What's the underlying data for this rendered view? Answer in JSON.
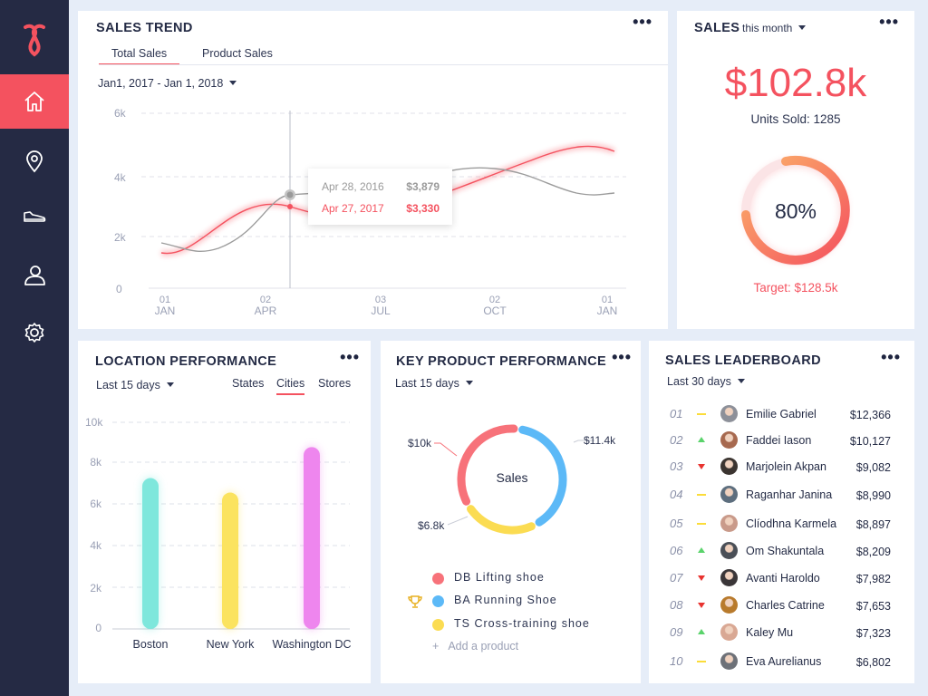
{
  "sales_trend": {
    "title": "SALES TREND",
    "tabs": [
      "Total Sales",
      "Product Sales"
    ],
    "date_range": "Jan1, 2017 - Jan 1, 2018",
    "y_ticks": [
      "6k",
      "4k",
      "2k",
      "0"
    ],
    "x_ticks": [
      {
        "d": "01",
        "m": "JAN"
      },
      {
        "d": "02",
        "m": "APR"
      },
      {
        "d": "03",
        "m": "JUL"
      },
      {
        "d": "02",
        "m": "OCT"
      },
      {
        "d": "01",
        "m": "JAN"
      }
    ],
    "tooltip": [
      {
        "date": "Apr 28, 2016",
        "value": "$3,879",
        "color": "#9a9a9a"
      },
      {
        "date": "Apr 27, 2017",
        "value": "$3,330",
        "color": "#f4525f"
      }
    ]
  },
  "sales": {
    "title": "SALES",
    "period": "this month",
    "amount": "$102.8k",
    "units_sold": "Units Sold: 1285",
    "percent": "80%",
    "target": "Target: $128.5k"
  },
  "location": {
    "title": "LOCATION PERFORMANCE",
    "period": "Last 15 days",
    "tabs": [
      "States",
      "Cities",
      "Stores"
    ],
    "y_ticks": [
      "10k",
      "8k",
      "6k",
      "4k",
      "2k",
      "0"
    ]
  },
  "key_product": {
    "title": "KEY PRODUCT PERFORMANCE",
    "period": "Last 15 days",
    "center_label": "Sales",
    "labels": [
      "$11.4k",
      "$10k",
      "$6.8k"
    ],
    "legend": [
      {
        "name": "DB Lifting shoe",
        "color": "#f7727a"
      },
      {
        "name": "BA Running Shoe",
        "color": "#5cb9f7"
      },
      {
        "name": "TS Cross-training shoe",
        "color": "#fbdc52"
      }
    ],
    "add_product": "Add a product",
    "trophy_icon": "trophy-icon"
  },
  "leaderboard": {
    "title": "SALES LEADERBOARD",
    "period": "Last 30 days",
    "rows": [
      {
        "rank": "01",
        "trend": "same",
        "name": "Emilie Gabriel",
        "amount": "$12,366"
      },
      {
        "rank": "02",
        "trend": "up",
        "name": "Faddei Iason",
        "amount": "$10,127"
      },
      {
        "rank": "03",
        "trend": "down",
        "name": "Marjolein Akpan",
        "amount": "$9,082"
      },
      {
        "rank": "04",
        "trend": "same",
        "name": "Raganhar Janina",
        "amount": "$8,990"
      },
      {
        "rank": "05",
        "trend": "same",
        "name": "Clíodhna Karmela",
        "amount": "$8,897"
      },
      {
        "rank": "06",
        "trend": "up",
        "name": "Om Shakuntala",
        "amount": "$8,209"
      },
      {
        "rank": "07",
        "trend": "down",
        "name": "Avanti Haroldo",
        "amount": "$7,982"
      },
      {
        "rank": "08",
        "trend": "down",
        "name": "Charles Catrine",
        "amount": "$7,653"
      },
      {
        "rank": "09",
        "trend": "up",
        "name": "Kaley Mu",
        "amount": "$7,323"
      },
      {
        "rank": "10",
        "trend": "same",
        "name": "Eva Aurelianus",
        "amount": "$6,802"
      }
    ]
  },
  "chart_data": [
    {
      "type": "line",
      "x": [
        "01 JAN",
        "02 APR",
        "03 JUL",
        "02 OCT",
        "01 JAN"
      ],
      "series": [
        {
          "values": [
            1200,
            3300,
            3900,
            4800,
            4700
          ]
        },
        {
          "values": [
            1800,
            3800,
            4000,
            4300,
            3400
          ]
        }
      ],
      "ylim": [
        0,
        6000
      ],
      "grid": true
    },
    {
      "type": "bar",
      "categories": [
        "Boston",
        "New York",
        "Washington DC"
      ],
      "values": [
        7300,
        6600,
        8800
      ],
      "colors": [
        "#7ee7dc",
        "#fbe35f",
        "#ee86ee"
      ],
      "ylim": [
        0,
        10000
      ],
      "grid": true
    },
    {
      "type": "pie",
      "categories": [
        "DB Lifting shoe",
        "BA Running Shoe",
        "TS Cross-training shoe"
      ],
      "values": [
        10,
        11.4,
        6.8
      ],
      "colors": [
        "#f7727a",
        "#5cb9f7",
        "#fbdc52"
      ]
    }
  ]
}
